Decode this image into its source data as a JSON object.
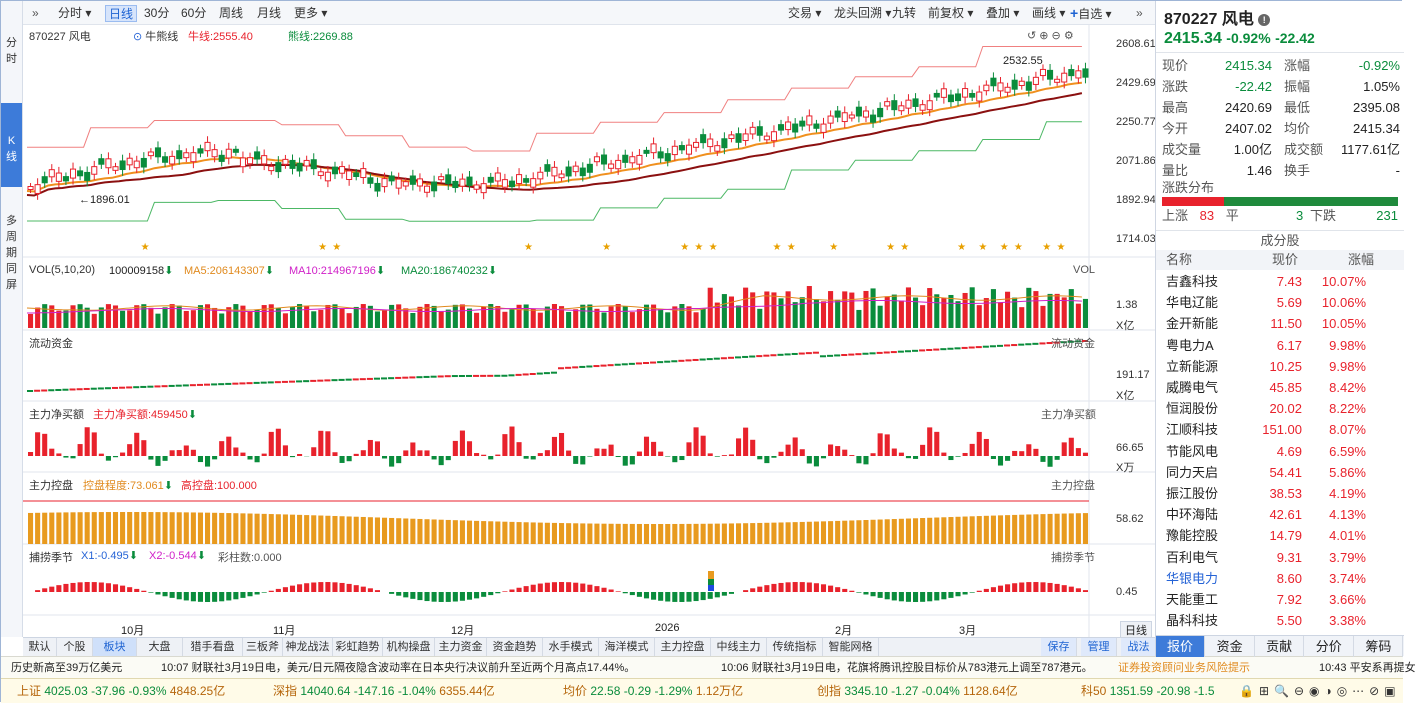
{
  "left_strip": {
    "items": [
      {
        "label": "分\n时"
      },
      {
        "label": "K\n线"
      },
      {
        "label": "多\n周\n期\n同\n屏"
      }
    ]
  },
  "toolbar": {
    "left_items": [
      "分时",
      "日线",
      "30分",
      "60分",
      "周线",
      "月线",
      "更多"
    ],
    "right_items": [
      "交易",
      "龙头回溯",
      "九转",
      "前复权",
      "叠加",
      "画线",
      "自选"
    ],
    "active": "日线"
  },
  "main_chart": {
    "stock": "870227 风电",
    "indicator": "牛熊线",
    "bull_label": "牛线:2555.40",
    "bear_label": "熊线:2269.88",
    "y_ticks": [
      "2608.61",
      "2429.69",
      "2250.77",
      "2071.86",
      "1892.94",
      "1714.03"
    ],
    "high_label": "2532.55",
    "low_label": "1896.01",
    "x_ticks": [
      "10月",
      "11月",
      "12月",
      "2026",
      "2月",
      "3月"
    ]
  },
  "vol_panel": {
    "title": "VOL(5,10,20)",
    "v": "100009158",
    "ma5": "MA5:206143307",
    "ma10": "MA10:214967196",
    "ma20": "MA20:186740232",
    "right_label": "VOL",
    "scale": "1.38",
    "unit": "X亿"
  },
  "flow_panel": {
    "title": "流动资金",
    "right_label": "流动资金",
    "scale": "191.17",
    "unit": "X亿"
  },
  "net_panel": {
    "title": "主力净买额",
    "value": "主力净买额:459450",
    "right_label": "主力净买额",
    "scale": "66.65",
    "unit": "X万"
  },
  "control_panel": {
    "title": "主力控盘",
    "degree": "控盘程度:73.061",
    "high": "高控盘:100.000",
    "right_label": "主力控盘",
    "scale": "58.62"
  },
  "catch_panel": {
    "title": "捕捞季节",
    "x1": "X1:-0.495",
    "x2": "X2:-0.544",
    "bars": "彩柱数:0.000",
    "right_label": "捕捞季节",
    "scale": "0.45"
  },
  "period_label": "日线",
  "bottom_tabs": [
    "默认",
    "个股",
    "板块",
    "大盘",
    "猎手看盘",
    "三板斧",
    "神龙战法",
    "彩虹趋势",
    "机构操盘",
    "主力资金",
    "资金趋势",
    "水手模式",
    "海洋模式",
    "主力控盘",
    "中线主力",
    "传统指标",
    "智能网格"
  ],
  "bottom_active": "板块",
  "bottom_right_tabs": [
    "保存",
    "管理",
    "战法"
  ],
  "news": {
    "item1": "历史新高至39万亿美元",
    "item2": "10:07 财联社3月19日电，美元/日元隔夜隐含波动率在日本央行决议前升至近两个月高点17.44%。",
    "item3": "10:06 财联社3月19日电，花旗将腾讯控股目标价从783港元上调至787港元。",
    "item4": "证券投资顾问业务风险提示",
    "item5": "10:43 平安系再提女"
  },
  "ticker": [
    {
      "name": "上证",
      "price": "4025.03",
      "chg": "-37.96",
      "pct": "-0.93%",
      "amt": "4848.25亿"
    },
    {
      "name": "深指",
      "price": "14040.64",
      "chg": "-147.16",
      "pct": "-1.04%",
      "amt": "6355.44亿"
    },
    {
      "name": "均价",
      "price": "22.58",
      "chg": "-0.29",
      "pct": "-1.29%",
      "amt": "1.12万亿"
    },
    {
      "name": "创指",
      "price": "3345.10",
      "chg": "-1.27",
      "pct": "-0.04%",
      "amt": "1128.64亿"
    },
    {
      "name": "科50",
      "price": "1351.59",
      "chg": "-20.98",
      "pct": "-1.5"
    }
  ],
  "quote": {
    "code_name": "870227 风电",
    "price": "2415.34",
    "pct": "-0.92%",
    "chg": "-22.42",
    "rows": [
      [
        "现价",
        "2415.34",
        "涨幅",
        "-0.92%"
      ],
      [
        "涨跌",
        "-22.42",
        "振幅",
        "1.05%"
      ],
      [
        "最高",
        "2420.69",
        "最低",
        "2395.08"
      ],
      [
        "今开",
        "2407.02",
        "均价",
        "2415.34"
      ],
      [
        "成交量",
        "1.00亿",
        "成交额",
        "1177.61亿"
      ],
      [
        "量比",
        "1.46",
        "换手",
        "-"
      ]
    ],
    "dist_title": "涨跌分布",
    "up_label": "上涨",
    "up": "83",
    "flat_label": "平",
    "flat": "3",
    "down_label": "下跌",
    "down": "231",
    "comp_title": "成分股",
    "comp_headers": [
      "名称",
      "现价",
      "涨幅"
    ],
    "components": [
      [
        "吉鑫科技",
        "7.43",
        "10.07%"
      ],
      [
        "华电辽能",
        "5.69",
        "10.06%"
      ],
      [
        "金开新能",
        "11.50",
        "10.05%"
      ],
      [
        "粤电力A",
        "6.17",
        "9.98%"
      ],
      [
        "立新能源",
        "10.25",
        "9.98%"
      ],
      [
        "威腾电气",
        "45.85",
        "8.42%"
      ],
      [
        "恒润股份",
        "20.02",
        "8.22%"
      ],
      [
        "江顺科技",
        "151.00",
        "8.07%"
      ],
      [
        "节能风电",
        "4.69",
        "6.59%"
      ],
      [
        "同力天启",
        "54.41",
        "5.86%"
      ],
      [
        "振江股份",
        "38.53",
        "4.19%"
      ],
      [
        "中环海陆",
        "42.61",
        "4.13%"
      ],
      [
        "豫能控股",
        "14.79",
        "4.01%"
      ],
      [
        "百利电气",
        "9.31",
        "3.79%"
      ],
      [
        "华银电力",
        "8.60",
        "3.74%"
      ],
      [
        "天能重工",
        "7.92",
        "3.66%"
      ],
      [
        "晶科科技",
        "5.50",
        "3.38%"
      ]
    ],
    "tabs": [
      "报价",
      "资金",
      "贡献",
      "分价",
      "筹码"
    ],
    "tab_active": "报价"
  }
}
